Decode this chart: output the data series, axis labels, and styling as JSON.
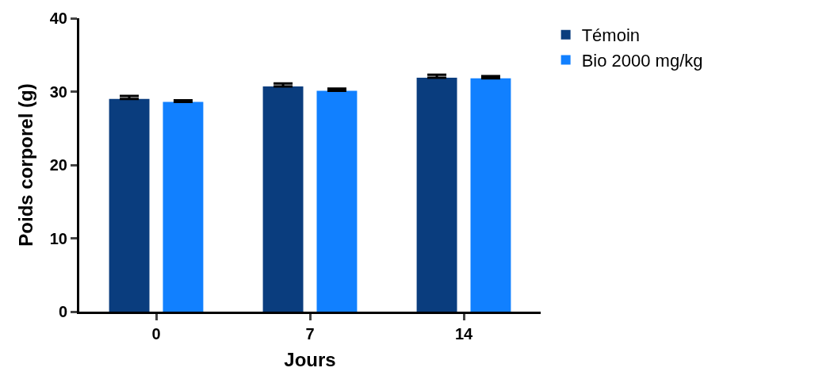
{
  "chart_data": {
    "type": "bar",
    "xlabel": "Jours",
    "ylabel": "Poids corporel (g)",
    "categories": [
      "0",
      "7",
      "14"
    ],
    "series": [
      {
        "name": "Témoin",
        "color": "#0a3d7e",
        "values": [
          29.0,
          30.7,
          31.9
        ],
        "errors": [
          [
            29.0,
            29.4
          ],
          [
            30.7,
            31.1
          ],
          [
            31.9,
            32.3
          ]
        ]
      },
      {
        "name": "Bio 2000 mg/kg",
        "color": "#1180ff",
        "values": [
          28.6,
          30.1,
          31.8
        ],
        "errors": [
          [
            28.6,
            28.8
          ],
          [
            30.1,
            30.4
          ],
          [
            31.8,
            32.1
          ]
        ]
      }
    ],
    "ylim": [
      0,
      40
    ],
    "yticks": [
      0,
      10,
      20,
      30,
      40
    ],
    "legend": "top right"
  }
}
